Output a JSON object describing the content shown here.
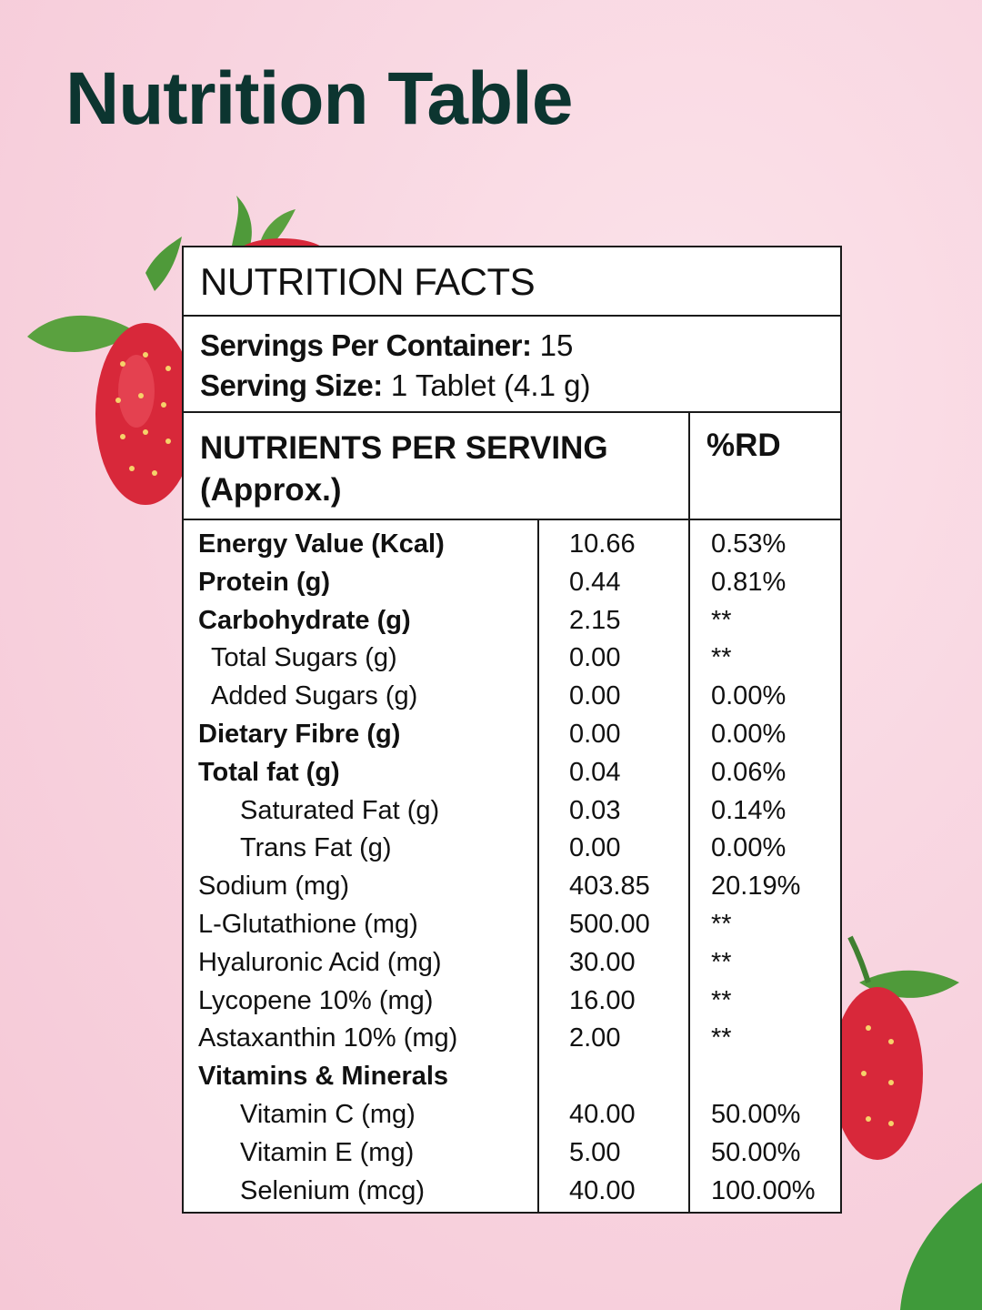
{
  "page_title": "Nutrition Table",
  "facts_heading": "NUTRITION FACTS",
  "servings": {
    "per_container_label": "Servings Per Container:",
    "per_container_value": " 15",
    "size_label": "Serving Size:",
    "size_value": " 1 Tablet (4.1 g)"
  },
  "table_header": {
    "nutrients_line1": "NUTRIENTS PER SERVING",
    "nutrients_line2": "(Approx.)",
    "rd": "%RD"
  },
  "rows": [
    {
      "name": "Energy Value (Kcal)",
      "value": "10.66",
      "rd": "0.53%"
    },
    {
      "name": "Protein (g)",
      "value": "0.44",
      "rd": "0.81%"
    },
    {
      "name": "Carbohydrate (g)",
      "value": "2.15",
      "rd": "**"
    },
    {
      "name": "Total Sugars (g)",
      "value": "0.00",
      "rd": "**"
    },
    {
      "name": "Added Sugars (g)",
      "value": "0.00",
      "rd": "0.00%"
    },
    {
      "name": "Dietary Fibre (g)",
      "value": "0.00",
      "rd": "0.00%"
    },
    {
      "name": "Total fat (g)",
      "value": "0.04",
      "rd": "0.06%"
    },
    {
      "name": "Saturated Fat (g)",
      "value": "0.03",
      "rd": "0.14%"
    },
    {
      "name": "Trans Fat (g)",
      "value": "0.00",
      "rd": "0.00%"
    },
    {
      "name": "Sodium (mg)",
      "value": "403.85",
      "rd": "20.19%"
    },
    {
      "name": "L-Glutathione (mg)",
      "value": "500.00",
      "rd": "**"
    },
    {
      "name": "Hyaluronic Acid (mg)",
      "value": "30.00",
      "rd": "**"
    },
    {
      "name": "Lycopene 10% (mg)",
      "value": "16.00",
      "rd": "**"
    },
    {
      "name": "Astaxanthin 10% (mg)",
      "value": "2.00",
      "rd": "**"
    },
    {
      "name": "Vitamins & Minerals",
      "value": "",
      "rd": ""
    },
    {
      "name": "Vitamin C (mg)",
      "value": "40.00",
      "rd": "50.00%"
    },
    {
      "name": "Vitamin E (mg)",
      "value": "5.00",
      "rd": "50.00%"
    },
    {
      "name": "Selenium (mcg)",
      "value": "40.00",
      "rd": "100.00%"
    }
  ],
  "colors": {
    "title": "#0c3530",
    "strawberry": "#d8283a",
    "leaf": "#4f9a3a"
  }
}
